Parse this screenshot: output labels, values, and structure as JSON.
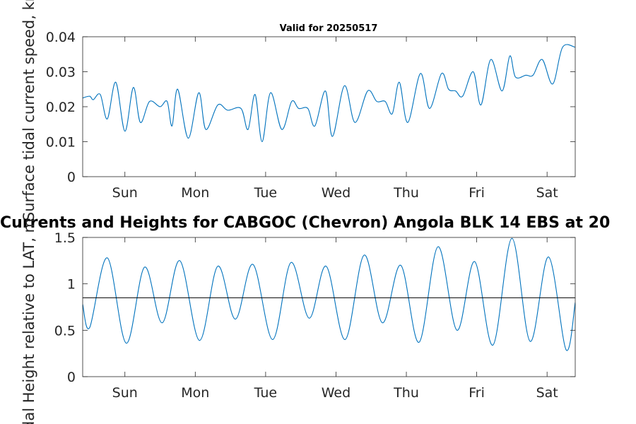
{
  "chart_data": [
    {
      "type": "line",
      "title": "Valid for 20250517",
      "ylabel": "Surface tidal current speed, kn",
      "ylim": [
        0,
        0.04
      ],
      "yticks": [
        0,
        0.01,
        0.02,
        0.03,
        0.04
      ],
      "ytick_labels": [
        "0",
        "0.01",
        "0.02",
        "0.03",
        "0.04"
      ],
      "xlim": [
        0,
        7
      ],
      "xticks": [
        0.6,
        1.6,
        2.6,
        3.6,
        4.6,
        5.6,
        6.6
      ],
      "xtick_labels": [
        "Sun",
        "Mon",
        "Tue",
        "Wed",
        "Thu",
        "Fri",
        "Sat"
      ],
      "grid": false,
      "series": [
        {
          "color": "#0072bd",
          "x": [
            0.0,
            0.1,
            0.15,
            0.25,
            0.35,
            0.47,
            0.6,
            0.72,
            0.82,
            0.95,
            1.1,
            1.2,
            1.27,
            1.35,
            1.5,
            1.65,
            1.75,
            1.92,
            2.06,
            2.25,
            2.35,
            2.45,
            2.55,
            2.67,
            2.83,
            2.97,
            3.07,
            3.2,
            3.3,
            3.45,
            3.55,
            3.72,
            3.87,
            4.05,
            4.18,
            4.3,
            4.4,
            4.5,
            4.62,
            4.8,
            4.93,
            5.1,
            5.2,
            5.3,
            5.4,
            5.55,
            5.66,
            5.8,
            5.96,
            6.07,
            6.15,
            6.3,
            6.4,
            6.53,
            6.68,
            6.82,
            7.0
          ],
          "y": [
            0.0225,
            0.023,
            0.022,
            0.0235,
            0.0165,
            0.027,
            0.013,
            0.0255,
            0.0155,
            0.0215,
            0.02,
            0.0215,
            0.0145,
            0.025,
            0.011,
            0.024,
            0.0135,
            0.0205,
            0.019,
            0.0195,
            0.0135,
            0.0235,
            0.01,
            0.024,
            0.0135,
            0.0215,
            0.0195,
            0.0195,
            0.0145,
            0.0245,
            0.0115,
            0.026,
            0.0155,
            0.0245,
            0.0215,
            0.0215,
            0.018,
            0.027,
            0.0155,
            0.0295,
            0.0195,
            0.0295,
            0.025,
            0.0245,
            0.023,
            0.03,
            0.0205,
            0.0335,
            0.0245,
            0.0345,
            0.0285,
            0.029,
            0.029,
            0.0335,
            0.0265,
            0.037,
            0.037
          ]
        }
      ]
    },
    {
      "type": "line",
      "title": "Currents and Heights for CABGOC (Chevron)  Angola BLK 14  EBS at 20",
      "ylabel": "Tidal Height relative to LAT, m",
      "ylim": [
        0,
        1.5
      ],
      "yticks": [
        0,
        0.5,
        1,
        1.5
      ],
      "ytick_labels": [
        "0",
        "0.5",
        "1",
        "1.5"
      ],
      "xlim": [
        0,
        7
      ],
      "xticks": [
        0.6,
        1.6,
        2.6,
        3.6,
        4.6,
        5.6,
        6.6
      ],
      "xtick_labels": [
        "Sun",
        "Mon",
        "Tue",
        "Wed",
        "Thu",
        "Fri",
        "Sat"
      ],
      "grid": false,
      "reference_line": 0.85,
      "reference_line_color": "#000000",
      "series": [
        {
          "color": "#0072bd",
          "x": [
            0.0,
            0.1,
            0.35,
            0.62,
            0.88,
            1.13,
            1.38,
            1.66,
            1.92,
            2.17,
            2.42,
            2.7,
            2.96,
            3.22,
            3.46,
            3.73,
            4.0,
            4.26,
            4.52,
            4.78,
            5.05,
            5.32,
            5.57,
            5.83,
            6.1,
            6.36,
            6.62,
            6.87,
            7.0
          ],
          "y": [
            0.78,
            0.53,
            1.28,
            0.36,
            1.18,
            0.58,
            1.25,
            0.39,
            1.19,
            0.62,
            1.21,
            0.4,
            1.23,
            0.63,
            1.19,
            0.4,
            1.31,
            0.58,
            1.2,
            0.37,
            1.4,
            0.5,
            1.24,
            0.34,
            1.49,
            0.38,
            1.29,
            0.29,
            0.8
          ]
        }
      ]
    }
  ]
}
